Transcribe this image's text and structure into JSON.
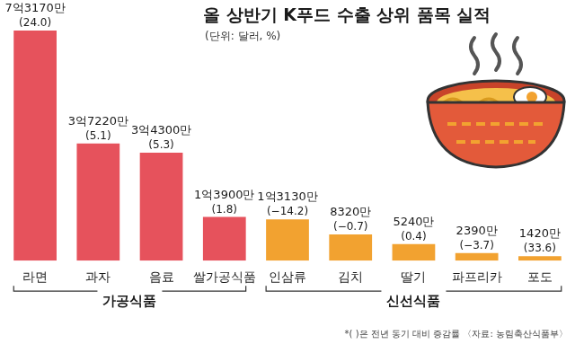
{
  "chart_data": {
    "type": "bar",
    "title": "올 상반기 K푸드 수출 상위 품목 실적",
    "subtitle": "(단위: 달러, %)",
    "categories": [
      "라면",
      "과자",
      "음료",
      "쌀가공식품",
      "인삼류",
      "김치",
      "딸기",
      "파프리카",
      "포도"
    ],
    "values": [
      731700000,
      372200000,
      343000000,
      139000000,
      131300000,
      83200000,
      52400000,
      23900000,
      14200000
    ],
    "value_labels": [
      "7억3170만",
      "3억7220만",
      "3억4300만",
      "1억3900만",
      "1억3130만",
      "8320만",
      "5240만",
      "2390만",
      "1420만"
    ],
    "change_values": [
      24.0,
      5.1,
      5.3,
      1.8,
      -14.2,
      -0.7,
      0.4,
      -3.7,
      33.6
    ],
    "change_labels": [
      "(24.0)",
      "(5.1)",
      "(5.3)",
      "(1.8)",
      "(−14.2)",
      "(−0.7)",
      "(0.4)",
      "(−3.7)",
      "(33.6)"
    ],
    "colors": [
      "#e6525c",
      "#e6525c",
      "#e6525c",
      "#e6525c",
      "#f2a230",
      "#f2a230",
      "#f2a230",
      "#f2a230",
      "#f2a230"
    ],
    "groups": [
      {
        "name": "가공식품",
        "categories": [
          "라면",
          "과자",
          "음료",
          "쌀가공식품"
        ]
      },
      {
        "name": "신선식품",
        "categories": [
          "인삼류",
          "김치",
          "딸기",
          "파프리카",
          "포도"
        ]
      }
    ],
    "note": "*( )은 전년 동기 대비 증감률 〈자료: 농림축산식품부〉",
    "data_labels": true,
    "tick_labels": "x",
    "grid": false
  }
}
